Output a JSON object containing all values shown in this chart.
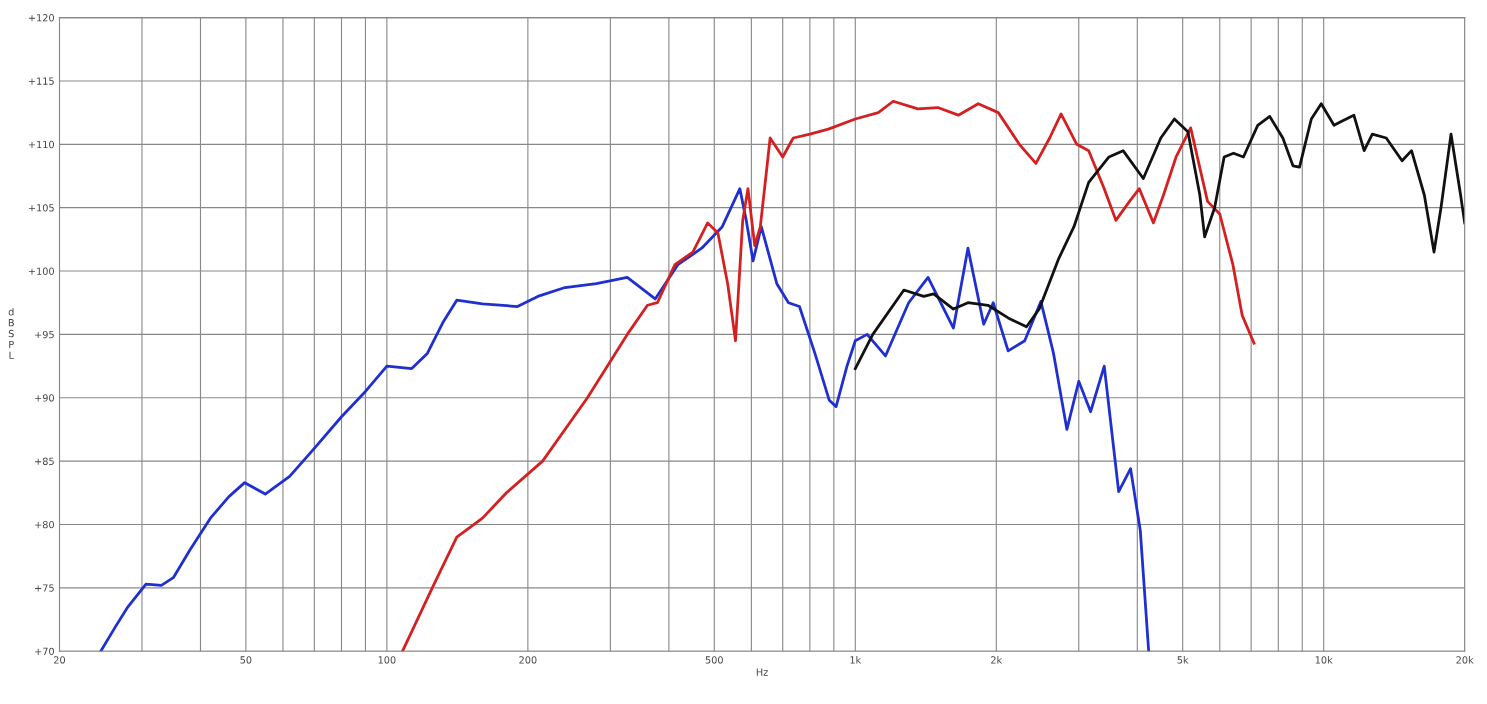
{
  "chart_data": {
    "type": "line",
    "xlabel": "Hz",
    "ylabel": "dB SPL",
    "log": "x",
    "grid": true,
    "marker": "none",
    "line_style": "solid",
    "xlim": [
      20,
      20000
    ],
    "ylim": [
      70,
      120
    ],
    "xticks": [
      20,
      {
        "value": 30,
        "label": null
      },
      {
        "value": 40,
        "label": null
      },
      50,
      {
        "value": 60,
        "label": null
      },
      {
        "value": 70,
        "label": null
      },
      {
        "value": 80,
        "label": null
      },
      {
        "value": 90,
        "label": null
      },
      100,
      200,
      {
        "value": 300,
        "label": null
      },
      {
        "value": 400,
        "label": null
      },
      500,
      {
        "value": 600,
        "label": null
      },
      {
        "value": 700,
        "label": null
      },
      {
        "value": 800,
        "label": null
      },
      {
        "value": 900,
        "label": null
      },
      {
        "value": 1000,
        "label": "1k"
      },
      {
        "value": 2000,
        "label": "2k"
      },
      {
        "value": 3000,
        "label": null
      },
      {
        "value": 4000,
        "label": null
      },
      {
        "value": 5000,
        "label": "5k"
      },
      {
        "value": 6000,
        "label": null
      },
      {
        "value": 7000,
        "label": null
      },
      {
        "value": 8000,
        "label": null
      },
      {
        "value": 9000,
        "label": null
      },
      {
        "value": 10000,
        "label": "10k"
      },
      {
        "value": 20000,
        "label": "20k"
      }
    ],
    "yticks": [
      {
        "value": 70,
        "label": "+70"
      },
      {
        "value": 75,
        "label": "+75"
      },
      {
        "value": 80,
        "label": "+80"
      },
      {
        "value": 85,
        "label": "+85"
      },
      {
        "value": 90,
        "label": "+90"
      },
      {
        "value": 95,
        "label": "+95"
      },
      {
        "value": 100,
        "label": "+100"
      },
      {
        "value": 105,
        "label": "+105"
      },
      {
        "value": 110,
        "label": "+110"
      },
      {
        "value": 115,
        "label": "+115"
      },
      {
        "value": 120,
        "label": "+120"
      }
    ],
    "series": [
      {
        "color": "#1f2fd0",
        "x": [
          24.5,
          26.4,
          28,
          30.6,
          33,
          35,
          38,
          42,
          46,
          49.7,
          55,
          62,
          70,
          80,
          90,
          100,
          113,
          122,
          132,
          141,
          160,
          190,
          210,
          240,
          280,
          326,
          374,
          418,
          470,
          520,
          567,
          585,
          605,
          630,
          680,
          720,
          760,
          820,
          880,
          910,
          960,
          1000,
          1060,
          1160,
          1300,
          1430,
          1620,
          1740,
          1880,
          1970,
          2120,
          2300,
          2490,
          2650,
          2830,
          3000,
          3180,
          3400,
          3650,
          3870,
          4060,
          4230
        ],
        "values": [
          70,
          72,
          73.5,
          75.3,
          75.2,
          75.8,
          78,
          80.5,
          82.2,
          83.3,
          82.4,
          83.8,
          86,
          88.5,
          90.5,
          92.5,
          92.3,
          93.5,
          96,
          97.7,
          97.4,
          97.2,
          98,
          98.7,
          99,
          99.5,
          97.8,
          100.5,
          101.8,
          103.5,
          106.5,
          104,
          100.8,
          103.5,
          99,
          97.5,
          97.2,
          93.5,
          89.8,
          89.3,
          92.5,
          94.5,
          95,
          93.3,
          97.5,
          99.5,
          95.5,
          101.8,
          95.8,
          97.5,
          93.7,
          94.5,
          97.6,
          93.5,
          87.5,
          91.3,
          88.9,
          92.5,
          82.6,
          84.4,
          79.5,
          70
        ]
      },
      {
        "color": "#d42020",
        "x": [
          108,
          125,
          141,
          160,
          180,
          215,
          268,
          326,
          360,
          378,
          412,
          450,
          484,
          509,
          534,
          555,
          575,
          590,
          610,
          627,
          658,
          700,
          737,
          800,
          876,
          1000,
          1120,
          1205,
          1360,
          1500,
          1660,
          1830,
          2020,
          2240,
          2430,
          2600,
          2750,
          2970,
          3150,
          3400,
          3600,
          3850,
          4040,
          4330,
          4550,
          4840,
          5200,
          5650,
          6000,
          6400,
          6700,
          7100
        ],
        "values": [
          70,
          75,
          79,
          80.5,
          82.5,
          85,
          90,
          95,
          97.3,
          97.5,
          100.5,
          101.5,
          103.8,
          103,
          99,
          94.5,
          104,
          106.5,
          102,
          103.5,
          110.5,
          109,
          110.5,
          110.8,
          111.2,
          112,
          112.5,
          113.4,
          112.8,
          112.9,
          112.3,
          113.2,
          112.5,
          110,
          108.5,
          110.5,
          112.4,
          110,
          109.5,
          106.5,
          104,
          105.5,
          106.5,
          103.8,
          106,
          109,
          111.3,
          105.5,
          104.5,
          100.5,
          96.5,
          94.3
        ]
      },
      {
        "color": "#111111",
        "x": [
          1000,
          1090,
          1270,
          1400,
          1470,
          1620,
          1740,
          1920,
          2120,
          2320,
          2470,
          2720,
          2930,
          3150,
          3480,
          3730,
          4120,
          4490,
          4800,
          5130,
          5440,
          5570,
          5850,
          6130,
          6420,
          6740,
          7230,
          7670,
          8180,
          8600,
          8880,
          9410,
          9880,
          10520,
          10900,
          11600,
          12200,
          12700,
          13600,
          14700,
          15400,
          16400,
          17200,
          17800,
          18700,
          19600,
          20000
        ],
        "values": [
          92.3,
          95,
          98.5,
          98,
          98.2,
          97,
          97.5,
          97.3,
          96.3,
          95.6,
          97,
          101,
          103.5,
          107,
          109,
          109.5,
          107.3,
          110.5,
          112,
          111,
          106,
          102.7,
          105,
          109,
          109.3,
          109,
          111.5,
          112.2,
          110.5,
          108.3,
          108.2,
          112,
          113.2,
          111.5,
          111.8,
          112.3,
          109.5,
          110.8,
          110.5,
          108.7,
          109.5,
          106,
          101.5,
          105,
          110.8,
          106,
          103.8
        ]
      }
    ]
  }
}
